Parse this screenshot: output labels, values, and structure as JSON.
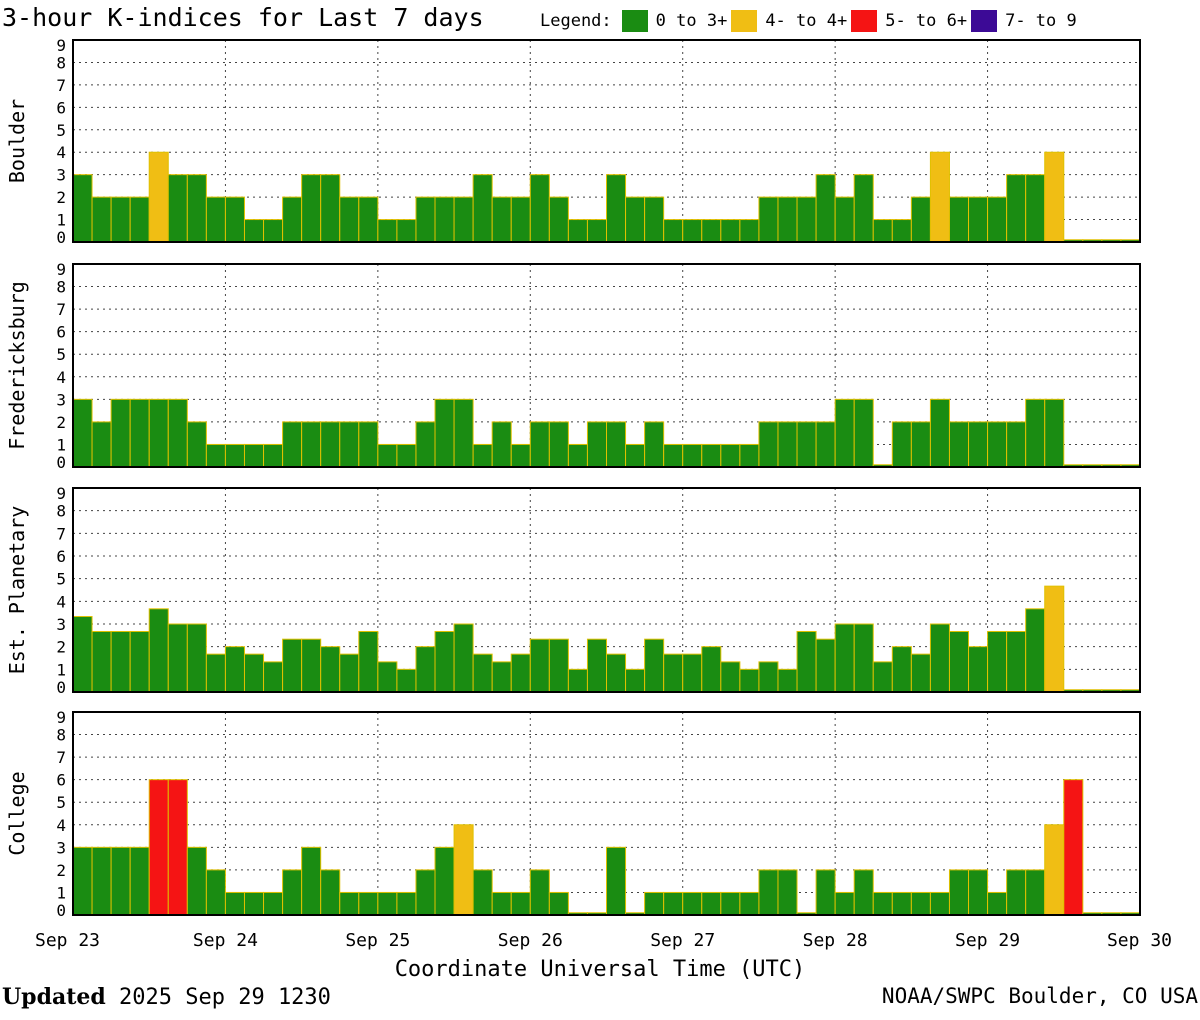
{
  "title": "3-hour K-indices for Last 7 days",
  "legend": {
    "label": "Legend:",
    "items": [
      {
        "label": "0 to 3+",
        "color": "#1a8c12"
      },
      {
        "label": "4- to 4+",
        "color": "#f0be14"
      },
      {
        "label": "5- to 6+",
        "color": "#f51414"
      },
      {
        "label": "7- to 9",
        "color": "#3c0a96"
      }
    ]
  },
  "footer": {
    "updated_label": "Updated",
    "updated_value": "2025 Sep 29 1230",
    "source": "NOAA/SWPC Boulder, CO USA"
  },
  "chart_data": {
    "type": "bar",
    "xlabel": "Coordinate Universal Time (UTC)",
    "x_tick_labels": [
      "Sep 23",
      "Sep 24",
      "Sep 25",
      "Sep 26",
      "Sep 27",
      "Sep 28",
      "Sep 29",
      "Sep 30"
    ],
    "y_tick_labels": [
      "0",
      "1",
      "2",
      "3",
      "4",
      "5",
      "6",
      "7",
      "8",
      "9"
    ],
    "ylim": [
      0,
      9
    ],
    "bins_per_day": 8,
    "grid": true,
    "panels": [
      {
        "name": "Boulder",
        "values": [
          3,
          2,
          2,
          2,
          4,
          3,
          3,
          2,
          2,
          1,
          1,
          2,
          3,
          3,
          2,
          2,
          1,
          1,
          2,
          2,
          2,
          3,
          2,
          2,
          3,
          2,
          1,
          1,
          3,
          2,
          2,
          1,
          1,
          1,
          1,
          1,
          2,
          2,
          2,
          3,
          2,
          3,
          1,
          1,
          2,
          4,
          2,
          2,
          2,
          3,
          3,
          4,
          0.1,
          0.1,
          0.1,
          0.1
        ]
      },
      {
        "name": "Fredericksburg",
        "values": [
          3,
          2,
          3,
          3,
          3,
          3,
          2,
          1,
          1,
          1,
          1,
          2,
          2,
          2,
          2,
          2,
          1,
          1,
          2,
          3,
          3,
          1,
          2,
          1,
          2,
          2,
          1,
          2,
          2,
          1,
          2,
          1,
          1,
          1,
          1,
          1,
          2,
          2,
          2,
          2,
          3,
          3,
          0.1,
          2,
          2,
          3,
          2,
          2,
          2,
          2,
          3,
          3,
          0.1,
          0.1,
          0.1,
          0.1
        ]
      },
      {
        "name": "Est. Planetary",
        "values": [
          3.33,
          2.67,
          2.67,
          2.67,
          3.67,
          3,
          3,
          1.67,
          2,
          1.67,
          1.33,
          2.33,
          2.33,
          2,
          1.67,
          2.67,
          1.33,
          1,
          2,
          2.67,
          3,
          1.67,
          1.33,
          1.67,
          2.33,
          2.33,
          1,
          2.33,
          1.67,
          1,
          2.33,
          1.67,
          1.67,
          2,
          1.33,
          1,
          1.33,
          1,
          2.67,
          2.33,
          3,
          3,
          1.33,
          2,
          1.67,
          3,
          2.67,
          2,
          2.67,
          2.67,
          3.67,
          4.67,
          0.1,
          0.1,
          0.1,
          0.1
        ]
      },
      {
        "name": "College",
        "values": [
          3,
          3,
          3,
          3,
          6,
          6,
          3,
          2,
          1,
          1,
          1,
          2,
          3,
          2,
          1,
          1,
          1,
          1,
          2,
          3,
          4,
          2,
          1,
          1,
          2,
          1,
          0.1,
          0.1,
          3,
          0.1,
          1,
          1,
          1,
          1,
          1,
          1,
          2,
          2,
          0.1,
          2,
          1,
          2,
          1,
          1,
          1,
          1,
          2,
          2,
          1,
          2,
          2,
          4,
          6,
          0.1,
          0.1,
          0.1
        ]
      }
    ]
  }
}
